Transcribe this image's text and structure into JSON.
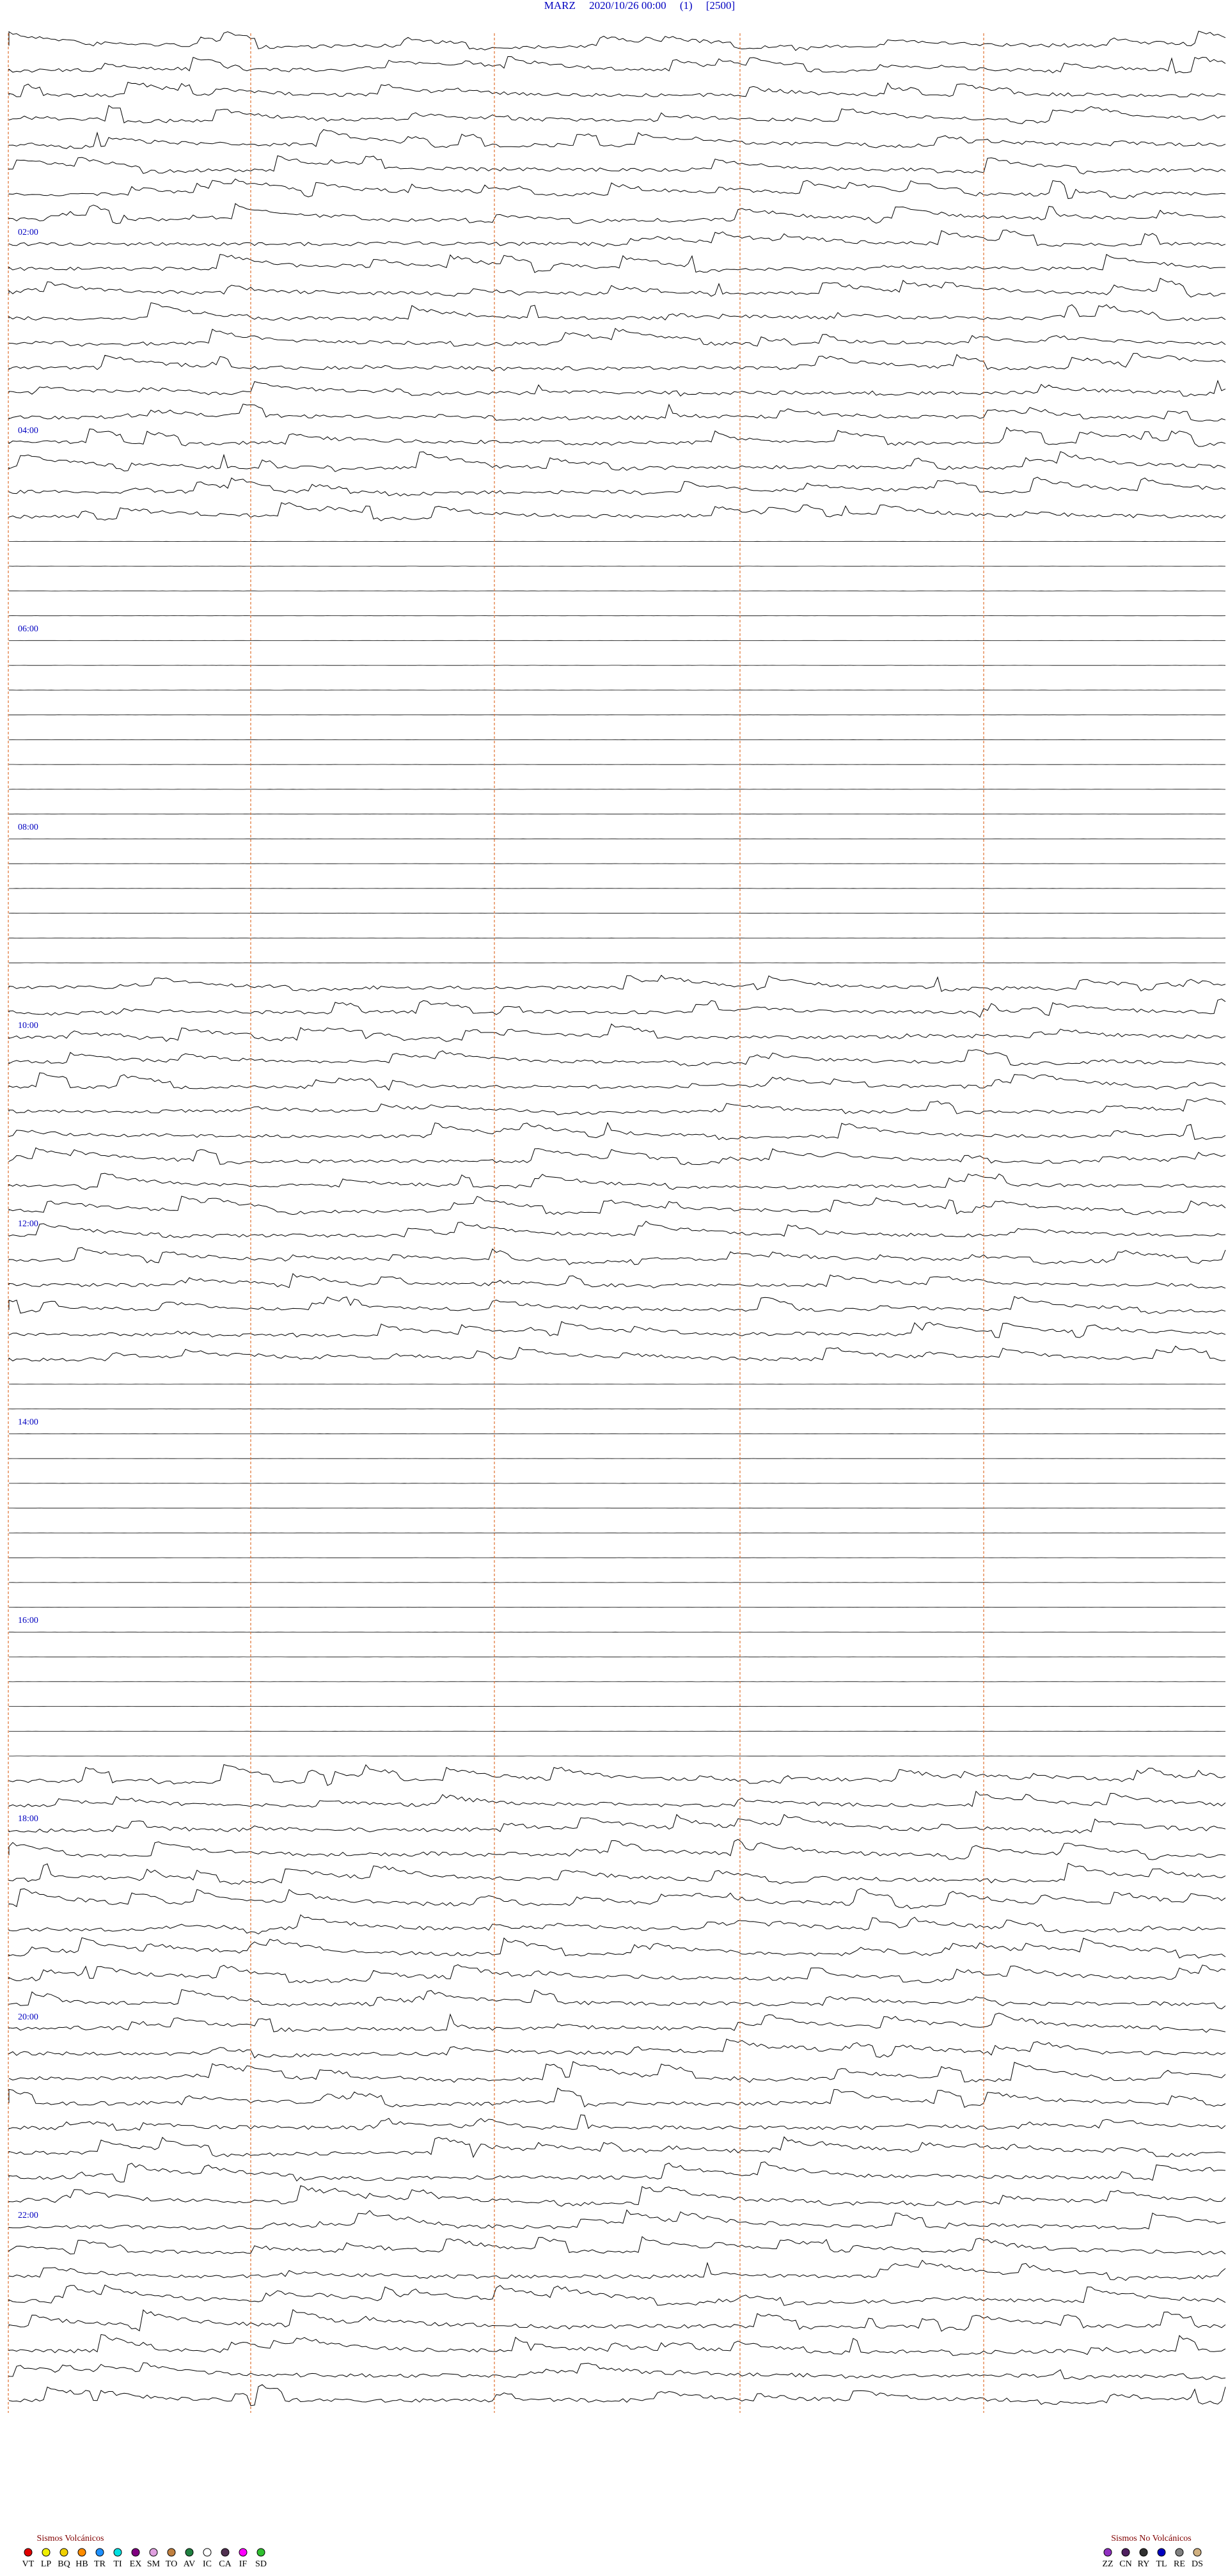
{
  "header": {
    "title": "MARZ     2020/10/26 00:00     (1)     [2500]"
  },
  "hour_labels": [
    "02:00",
    "04:00",
    "06:00",
    "08:00",
    "10:00",
    "12:00",
    "14:00",
    "16:00",
    "18:00",
    "20:00",
    "22:00"
  ],
  "legend": {
    "volcanic": {
      "title": "Sismos Volcánicos",
      "items": [
        {
          "code": "VT",
          "color": "#e00000"
        },
        {
          "code": "LP",
          "color": "#f0f000"
        },
        {
          "code": "BQ",
          "color": "#f0d000"
        },
        {
          "code": "HB",
          "color": "#ff8c00"
        },
        {
          "code": "TR",
          "color": "#1e90ff"
        },
        {
          "code": "TI",
          "color": "#00e0e0"
        },
        {
          "code": "EX",
          "color": "#800080"
        },
        {
          "code": "SM",
          "color": "#e0a0e0"
        },
        {
          "code": "TO",
          "color": "#c08040"
        },
        {
          "code": "AV",
          "color": "#208040"
        },
        {
          "code": "IC",
          "color": "#ffffff"
        },
        {
          "code": "CA",
          "color": "#503050"
        },
        {
          "code": "IF",
          "color": "#ff00ff"
        },
        {
          "code": "SD",
          "color": "#30c030"
        }
      ]
    },
    "non_volcanic": {
      "title": "Sismos No Volcánicos",
      "items": [
        {
          "code": "ZZ",
          "color": "#9030c0"
        },
        {
          "code": "CN",
          "color": "#502060"
        },
        {
          "code": "RY",
          "color": "#303030"
        },
        {
          "code": "TL",
          "color": "#0000c0"
        },
        {
          "code": "RE",
          "color": "#808080"
        },
        {
          "code": "DS",
          "color": "#d0b080"
        }
      ]
    }
  }
}
